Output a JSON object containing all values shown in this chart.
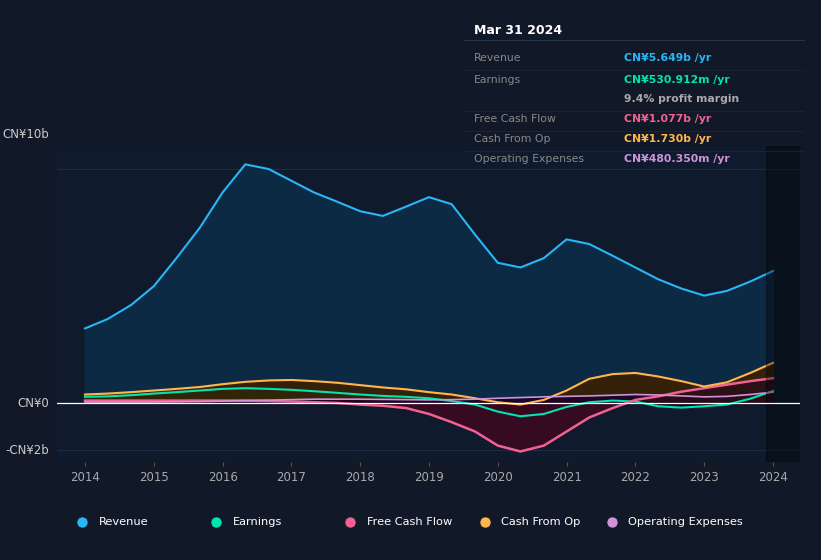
{
  "bg_color": "#111827",
  "chart_bg": "#0f1b2d",
  "grid_color": "#1e3048",
  "zero_line_color": "#ffffff",
  "years": [
    2014,
    2014.33,
    2014.67,
    2015,
    2015.33,
    2015.67,
    2016,
    2016.33,
    2016.67,
    2017,
    2017.33,
    2017.67,
    2018,
    2018.33,
    2018.67,
    2019,
    2019.33,
    2019.67,
    2020,
    2020.33,
    2020.67,
    2021,
    2021.33,
    2021.67,
    2022,
    2022.33,
    2022.67,
    2023,
    2023.33,
    2023.67,
    2024
  ],
  "revenue": [
    3.2,
    3.6,
    4.2,
    5.0,
    6.2,
    7.5,
    9.0,
    10.2,
    10.0,
    9.5,
    9.0,
    8.6,
    8.2,
    8.0,
    8.4,
    8.8,
    8.5,
    7.2,
    6.0,
    5.8,
    6.2,
    7.0,
    6.8,
    6.3,
    5.8,
    5.3,
    4.9,
    4.6,
    4.8,
    5.2,
    5.65
  ],
  "earnings": [
    0.28,
    0.3,
    0.35,
    0.42,
    0.48,
    0.55,
    0.62,
    0.65,
    0.62,
    0.58,
    0.52,
    0.45,
    0.38,
    0.32,
    0.28,
    0.22,
    0.1,
    -0.05,
    -0.35,
    -0.55,
    -0.45,
    -0.15,
    0.05,
    0.12,
    0.08,
    -0.12,
    -0.18,
    -0.12,
    -0.05,
    0.2,
    0.53
  ],
  "free_cash_flow": [
    0.12,
    0.12,
    0.12,
    0.12,
    0.12,
    0.12,
    0.12,
    0.12,
    0.1,
    0.08,
    0.05,
    0.02,
    -0.05,
    -0.1,
    -0.2,
    -0.45,
    -0.8,
    -1.2,
    -1.8,
    -2.05,
    -1.8,
    -1.2,
    -0.6,
    -0.2,
    0.15,
    0.3,
    0.5,
    0.65,
    0.8,
    0.95,
    1.077
  ],
  "cash_from_op": [
    0.38,
    0.42,
    0.48,
    0.55,
    0.62,
    0.7,
    0.82,
    0.92,
    0.98,
    1.0,
    0.95,
    0.88,
    0.78,
    0.68,
    0.6,
    0.48,
    0.38,
    0.22,
    0.05,
    -0.05,
    0.15,
    0.55,
    1.05,
    1.25,
    1.3,
    1.15,
    0.95,
    0.72,
    0.9,
    1.3,
    1.73
  ],
  "operating_expenses": [
    0.06,
    0.06,
    0.06,
    0.06,
    0.07,
    0.08,
    0.1,
    0.12,
    0.14,
    0.16,
    0.18,
    0.18,
    0.18,
    0.17,
    0.16,
    0.15,
    0.16,
    0.18,
    0.22,
    0.25,
    0.28,
    0.3,
    0.32,
    0.35,
    0.38,
    0.36,
    0.32,
    0.28,
    0.3,
    0.38,
    0.48
  ],
  "revenue_color": "#29b6f6",
  "revenue_fill": "#0d2a45",
  "earnings_color": "#00e5b0",
  "earnings_fill_pos": "#003d30",
  "earnings_fill_neg": "#1a0020",
  "fcf_color": "#f06292",
  "fcf_fill_pos": "#2a0f18",
  "fcf_fill_neg": "#3d0820",
  "cashop_color": "#ffb74d",
  "cashop_fill_pos": "#3d2000",
  "cashop_fill_neg": "#3d1500",
  "opex_color": "#ce93d8",
  "opex_fill": "#1a0028",
  "ylim_min": -2.5,
  "ylim_max": 11.0,
  "xlim_min": 2013.6,
  "xlim_max": 2024.4,
  "xtick_years": [
    2014,
    2015,
    2016,
    2017,
    2018,
    2019,
    2020,
    2021,
    2022,
    2023,
    2024
  ],
  "highlight_x_start": 2023.9,
  "highlight_x_end": 2024.4,
  "info_rows": [
    {
      "label": "Revenue",
      "value": "CN¥5.649b /yr",
      "value_color": "#29b6f6"
    },
    {
      "label": "Earnings",
      "value": "CN¥530.912m /yr",
      "value_color": "#00e5b0"
    },
    {
      "label": "",
      "value": "9.4% profit margin",
      "value_color": "#aaaaaa"
    },
    {
      "label": "Free Cash Flow",
      "value": "CN¥1.077b /yr",
      "value_color": "#f06292"
    },
    {
      "label": "Cash From Op",
      "value": "CN¥1.730b /yr",
      "value_color": "#ffb74d"
    },
    {
      "label": "Operating Expenses",
      "value": "CN¥480.350m /yr",
      "value_color": "#ce93d8"
    }
  ],
  "legend_items": [
    {
      "label": "Revenue",
      "color": "#29b6f6"
    },
    {
      "label": "Earnings",
      "color": "#00e5b0"
    },
    {
      "label": "Free Cash Flow",
      "color": "#f06292"
    },
    {
      "label": "Cash From Op",
      "color": "#ffb74d"
    },
    {
      "label": "Operating Expenses",
      "color": "#ce93d8"
    }
  ]
}
